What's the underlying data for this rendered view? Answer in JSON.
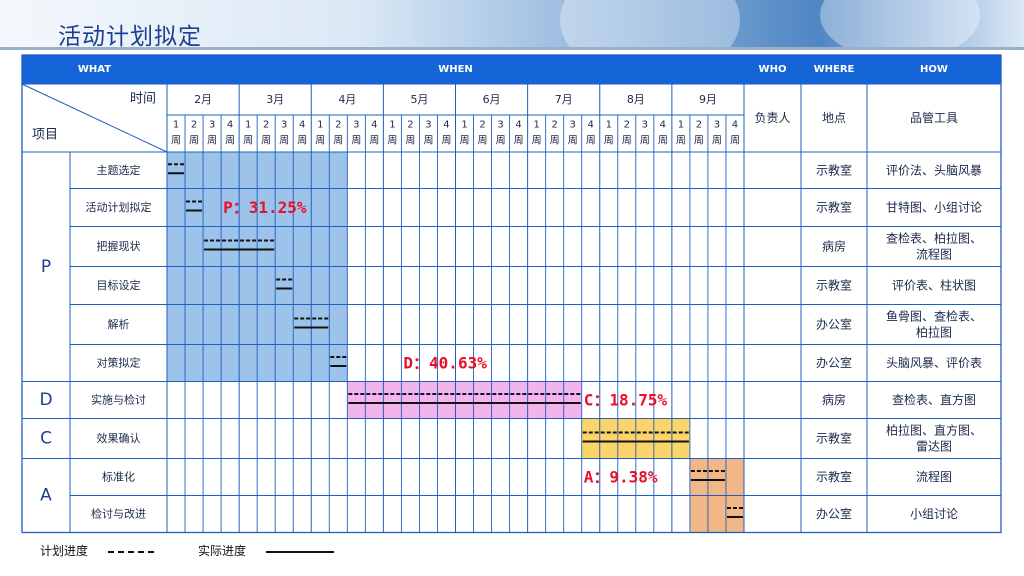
{
  "page_title": "活动计划拟定",
  "header": {
    "what": "WHAT",
    "when": "WHEN",
    "who": "WHO",
    "where": "WHERE",
    "how": "HOW"
  },
  "subheader": {
    "time": "时间",
    "item": "项目",
    "owner": "负责人",
    "location": "地点",
    "tools": "品管工具"
  },
  "months": [
    "2月",
    "3月",
    "4月",
    "5月",
    "6月",
    "7月",
    "8月",
    "9月"
  ],
  "week_numbers": [
    "1",
    "2",
    "3",
    "4"
  ],
  "week_unit": "周",
  "phases": [
    {
      "label": "P",
      "color": "#9ec3ea",
      "rows": [
        0,
        5
      ]
    },
    {
      "label": "D",
      "color": "#f3b4ee",
      "rows": [
        6,
        6
      ]
    },
    {
      "label": "C",
      "color": "#fcd56a",
      "rows": [
        7,
        7
      ]
    },
    {
      "label": "A",
      "color": "#f2b787",
      "rows": [
        8,
        9
      ]
    }
  ],
  "rows": [
    {
      "task": "主题选定",
      "location": "示教室",
      "tools": "评价法、头脑风暴",
      "plan": [
        0,
        0
      ],
      "actual": [
        0,
        0
      ]
    },
    {
      "task": "活动计划拟定",
      "location": "示教室",
      "tools": "甘特图、小组讨论",
      "plan": [
        1,
        1
      ],
      "actual": [
        1,
        1
      ]
    },
    {
      "task": "把握现状",
      "location": "病房",
      "tools": "查检表、柏拉图、流程图",
      "plan": [
        2,
        5
      ],
      "actual": [
        2,
        5
      ]
    },
    {
      "task": "目标设定",
      "location": "示教室",
      "tools": "评价表、柱状图",
      "plan": [
        6,
        6
      ],
      "actual": [
        6,
        6
      ]
    },
    {
      "task": "解析",
      "location": "办公室",
      "tools": "鱼骨图、查检表、柏拉图",
      "plan": [
        7,
        8
      ],
      "actual": [
        7,
        8
      ]
    },
    {
      "task": "对策拟定",
      "location": "办公室",
      "tools": "头脑风暴、评价表",
      "plan": [
        9,
        9
      ],
      "actual": [
        9,
        9
      ]
    },
    {
      "task": "实施与检讨",
      "location": "病房",
      "tools": "查检表、直方图",
      "plan": [
        10,
        22
      ],
      "actual": [
        10,
        22
      ]
    },
    {
      "task": "效果确认",
      "location": "示教室",
      "tools": "柏拉图、直方图、雷达图",
      "plan": [
        23,
        28
      ],
      "actual": [
        23,
        28
      ]
    },
    {
      "task": "标准化",
      "location": "示教室",
      "tools": "流程图",
      "plan": [
        29,
        30
      ],
      "actual": [
        29,
        30
      ]
    },
    {
      "task": "检讨与改进",
      "location": "办公室",
      "tools": "小组讨论",
      "plan": [
        31,
        31
      ],
      "actual": [
        31,
        31
      ]
    }
  ],
  "percentages": [
    {
      "label": "P：31.25%",
      "row": 1,
      "week": 3
    },
    {
      "label": "D：40.63%",
      "row": 5,
      "week": 13
    },
    {
      "label": "C：18.75%",
      "row": 6,
      "week": 23
    },
    {
      "label": "A：9.38%",
      "row": 8,
      "week": 23
    }
  ],
  "legend": {
    "plan": "计划进度",
    "actual": "实际进度"
  },
  "colors": {
    "header_blue": "#1565d8",
    "grid_blue": "#1f5fbf",
    "title_blue": "#1d3f8f",
    "percent_red": "#e8102a"
  }
}
